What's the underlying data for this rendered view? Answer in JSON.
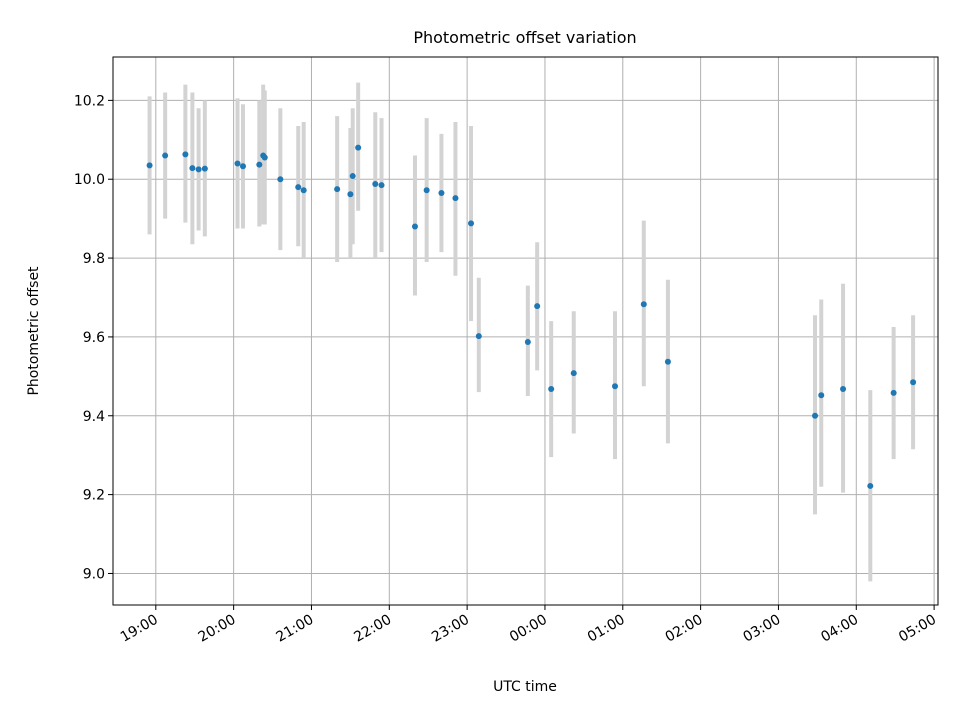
{
  "chart_data": {
    "type": "scatter",
    "title": "Photometric offset variation",
    "xlabel": "UTC time",
    "ylabel": "Photometric offset",
    "x_unit": "hours since 19:00 UTC",
    "xlim": [
      -0.55,
      10.05
    ],
    "ylim": [
      8.92,
      10.31
    ],
    "grid": true,
    "x_ticks": [
      {
        "value": 0,
        "label": "19:00"
      },
      {
        "value": 1,
        "label": "20:00"
      },
      {
        "value": 2,
        "label": "21:00"
      },
      {
        "value": 3,
        "label": "22:00"
      },
      {
        "value": 4,
        "label": "23:00"
      },
      {
        "value": 5,
        "label": "00:00"
      },
      {
        "value": 6,
        "label": "01:00"
      },
      {
        "value": 7,
        "label": "02:00"
      },
      {
        "value": 8,
        "label": "03:00"
      },
      {
        "value": 9,
        "label": "04:00"
      },
      {
        "value": 10,
        "label": "05:00"
      }
    ],
    "y_ticks": [
      {
        "value": 9.0,
        "label": "9.0"
      },
      {
        "value": 9.2,
        "label": "9.2"
      },
      {
        "value": 9.4,
        "label": "9.4"
      },
      {
        "value": 9.6,
        "label": "9.6"
      },
      {
        "value": 9.8,
        "label": "9.8"
      },
      {
        "value": 10.0,
        "label": "10.0"
      },
      {
        "value": 10.2,
        "label": "10.2"
      }
    ],
    "colors": {
      "point": "#1f77b4",
      "errorbar": "#d3d3d3",
      "grid": "#b0b0b0"
    },
    "points": [
      {
        "x": -0.08,
        "y": 10.035,
        "low": 9.86,
        "high": 10.21
      },
      {
        "x": 0.12,
        "y": 10.06,
        "low": 9.9,
        "high": 10.22
      },
      {
        "x": 0.38,
        "y": 10.063,
        "low": 9.89,
        "high": 10.24
      },
      {
        "x": 0.47,
        "y": 10.028,
        "low": 9.835,
        "high": 10.22
      },
      {
        "x": 0.55,
        "y": 10.025,
        "low": 9.87,
        "high": 10.18
      },
      {
        "x": 0.63,
        "y": 10.027,
        "low": 9.855,
        "high": 10.2
      },
      {
        "x": 1.05,
        "y": 10.04,
        "low": 9.875,
        "high": 10.205
      },
      {
        "x": 1.12,
        "y": 10.033,
        "low": 9.875,
        "high": 10.19
      },
      {
        "x": 1.33,
        "y": 10.037,
        "low": 9.88,
        "high": 10.2
      },
      {
        "x": 1.38,
        "y": 10.06,
        "low": 9.885,
        "high": 10.24
      },
      {
        "x": 1.4,
        "y": 10.055,
        "low": 9.885,
        "high": 10.225
      },
      {
        "x": 1.6,
        "y": 10.0,
        "low": 9.82,
        "high": 10.18
      },
      {
        "x": 1.83,
        "y": 9.98,
        "low": 9.83,
        "high": 10.135
      },
      {
        "x": 1.9,
        "y": 9.972,
        "low": 9.8,
        "high": 10.145
      },
      {
        "x": 2.33,
        "y": 9.975,
        "low": 9.79,
        "high": 10.16
      },
      {
        "x": 2.5,
        "y": 9.962,
        "low": 9.8,
        "high": 10.13
      },
      {
        "x": 2.53,
        "y": 10.008,
        "low": 9.835,
        "high": 10.18
      },
      {
        "x": 2.6,
        "y": 10.08,
        "low": 9.92,
        "high": 10.245
      },
      {
        "x": 2.82,
        "y": 9.988,
        "low": 9.8,
        "high": 10.17
      },
      {
        "x": 2.9,
        "y": 9.985,
        "low": 9.815,
        "high": 10.155
      },
      {
        "x": 3.33,
        "y": 9.88,
        "low": 9.705,
        "high": 10.06
      },
      {
        "x": 3.48,
        "y": 9.972,
        "low": 9.79,
        "high": 10.155
      },
      {
        "x": 3.67,
        "y": 9.965,
        "low": 9.815,
        "high": 10.115
      },
      {
        "x": 3.85,
        "y": 9.952,
        "low": 9.755,
        "high": 10.145
      },
      {
        "x": 4.05,
        "y": 9.888,
        "low": 9.64,
        "high": 10.135
      },
      {
        "x": 4.15,
        "y": 9.602,
        "low": 9.46,
        "high": 9.75
      },
      {
        "x": 4.78,
        "y": 9.587,
        "low": 9.45,
        "high": 9.73
      },
      {
        "x": 4.9,
        "y": 9.678,
        "low": 9.515,
        "high": 9.84
      },
      {
        "x": 5.08,
        "y": 9.468,
        "low": 9.295,
        "high": 9.64
      },
      {
        "x": 5.37,
        "y": 9.508,
        "low": 9.355,
        "high": 9.665
      },
      {
        "x": 5.9,
        "y": 9.475,
        "low": 9.29,
        "high": 9.665
      },
      {
        "x": 6.27,
        "y": 9.683,
        "low": 9.475,
        "high": 9.895
      },
      {
        "x": 6.58,
        "y": 9.537,
        "low": 9.33,
        "high": 9.745
      },
      {
        "x": 8.47,
        "y": 9.4,
        "low": 9.15,
        "high": 9.655
      },
      {
        "x": 8.55,
        "y": 9.452,
        "low": 9.22,
        "high": 9.695
      },
      {
        "x": 8.83,
        "y": 9.468,
        "low": 9.205,
        "high": 9.735
      },
      {
        "x": 9.18,
        "y": 9.222,
        "low": 8.98,
        "high": 9.465
      },
      {
        "x": 9.48,
        "y": 9.458,
        "low": 9.29,
        "high": 9.625
      },
      {
        "x": 9.73,
        "y": 9.485,
        "low": 9.315,
        "high": 9.655
      }
    ]
  }
}
